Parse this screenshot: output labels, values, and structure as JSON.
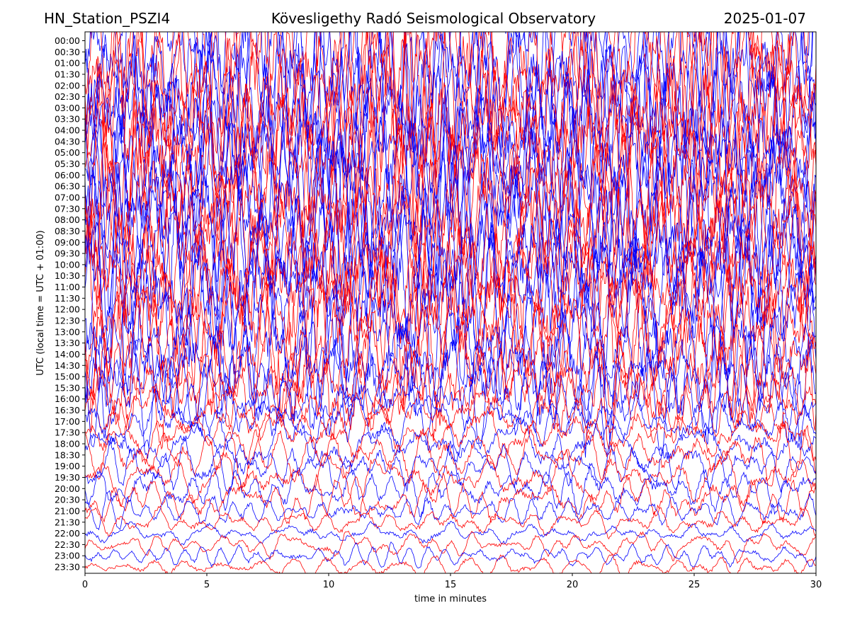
{
  "header": {
    "station": "HN_Station_PSZI4",
    "title": "Kövesligethy Radó Seismological Observatory",
    "date": "2025-01-07"
  },
  "chart_data": {
    "type": "line",
    "title": "Kövesligethy Radó Seismological Observatory",
    "xlabel": "time in minutes",
    "ylabel": "UTC (local time = UTC + 01:00)",
    "xlim": [
      0,
      30
    ],
    "x_ticks": [
      0,
      5,
      10,
      15,
      20,
      25,
      30
    ],
    "x_tick_labels": [
      "0",
      "5",
      "10",
      "15",
      "20",
      "25",
      "30"
    ],
    "grid": false,
    "legend": "none",
    "row_interval_minutes": 30,
    "series_colors": [
      "#0000ff",
      "#ff0000"
    ],
    "rows": [
      {
        "label": "00:00",
        "amplitude": 0.95
      },
      {
        "label": "00:30",
        "amplitude": 0.95
      },
      {
        "label": "01:00",
        "amplitude": 0.95
      },
      {
        "label": "01:30",
        "amplitude": 0.95
      },
      {
        "label": "02:00",
        "amplitude": 0.95
      },
      {
        "label": "02:30",
        "amplitude": 0.95
      },
      {
        "label": "03:00",
        "amplitude": 0.95
      },
      {
        "label": "03:30",
        "amplitude": 0.95
      },
      {
        "label": "04:00",
        "amplitude": 0.95
      },
      {
        "label": "04:30",
        "amplitude": 0.95
      },
      {
        "label": "05:00",
        "amplitude": 0.95
      },
      {
        "label": "05:30",
        "amplitude": 0.95
      },
      {
        "label": "06:00",
        "amplitude": 0.95
      },
      {
        "label": "06:30",
        "amplitude": 0.95
      },
      {
        "label": "07:00",
        "amplitude": 0.95
      },
      {
        "label": "07:30",
        "amplitude": 0.95
      },
      {
        "label": "08:00",
        "amplitude": 0.9
      },
      {
        "label": "08:30",
        "amplitude": 0.9
      },
      {
        "label": "09:00",
        "amplitude": 0.9
      },
      {
        "label": "09:30",
        "amplitude": 0.9
      },
      {
        "label": "10:00",
        "amplitude": 0.85
      },
      {
        "label": "10:30",
        "amplitude": 0.85
      },
      {
        "label": "11:00",
        "amplitude": 0.85
      },
      {
        "label": "11:30",
        "amplitude": 0.85
      },
      {
        "label": "12:00",
        "amplitude": 0.8
      },
      {
        "label": "12:30",
        "amplitude": 0.8
      },
      {
        "label": "13:00",
        "amplitude": 0.75
      },
      {
        "label": "13:30",
        "amplitude": 0.7
      },
      {
        "label": "14:00",
        "amplitude": 0.65
      },
      {
        "label": "14:30",
        "amplitude": 0.6
      },
      {
        "label": "15:00",
        "amplitude": 0.55
      },
      {
        "label": "15:30",
        "amplitude": 0.45
      },
      {
        "label": "16:00",
        "amplitude": 0.35
      },
      {
        "label": "16:30",
        "amplitude": 0.3
      },
      {
        "label": "17:00",
        "amplitude": 0.25
      },
      {
        "label": "17:30",
        "amplitude": 0.25
      },
      {
        "label": "18:00",
        "amplitude": 0.25
      },
      {
        "label": "18:30",
        "amplitude": 0.25
      },
      {
        "label": "19:00",
        "amplitude": 0.22
      },
      {
        "label": "19:30",
        "amplitude": 0.22
      },
      {
        "label": "20:00",
        "amplitude": 0.22
      },
      {
        "label": "20:30",
        "amplitude": 0.2
      },
      {
        "label": "21:00",
        "amplitude": 0.15
      },
      {
        "label": "21:30",
        "amplitude": 0.12
      },
      {
        "label": "22:00",
        "amplitude": 0.1
      },
      {
        "label": "22:30",
        "amplitude": 0.1
      },
      {
        "label": "23:00",
        "amplitude": 0.1
      },
      {
        "label": "23:30",
        "amplitude": 0.1
      }
    ]
  }
}
